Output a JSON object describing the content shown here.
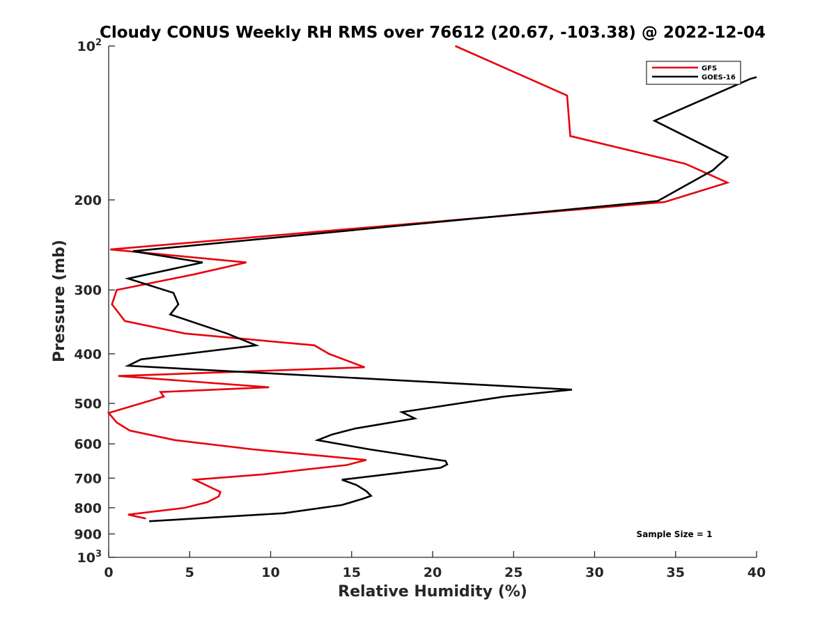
{
  "chart_data": {
    "type": "line",
    "title": "Cloudy CONUS Weekly RH RMS over 76612 (20.67, -103.38) @ 2022-12-04",
    "xlabel": "Relative Humidity (%)",
    "ylabel": "Pressure (mb)",
    "xlim": [
      0,
      40
    ],
    "ylim": [
      100,
      1000
    ],
    "yscale": "log",
    "y_reversed": true,
    "x_ticks": [
      0,
      5,
      10,
      15,
      20,
      25,
      30,
      35,
      40
    ],
    "x_tick_labels": [
      "0",
      "5",
      "10",
      "15",
      "20",
      "25",
      "30",
      "35",
      "40"
    ],
    "y_ticks": [
      {
        "value": 100,
        "label": "10",
        "sup": "2"
      },
      {
        "value": 200,
        "label": "200",
        "sup": ""
      },
      {
        "value": 300,
        "label": "300",
        "sup": ""
      },
      {
        "value": 400,
        "label": "400",
        "sup": ""
      },
      {
        "value": 500,
        "label": "500",
        "sup": ""
      },
      {
        "value": 600,
        "label": "600",
        "sup": ""
      },
      {
        "value": 700,
        "label": "700",
        "sup": ""
      },
      {
        "value": 800,
        "label": "800",
        "sup": ""
      },
      {
        "value": 900,
        "label": "900",
        "sup": ""
      },
      {
        "value": 1000,
        "label": "10",
        "sup": "3"
      }
    ],
    "legend_position": "top-right",
    "annotation": "Sample Size = 1",
    "series": [
      {
        "name": "GFS",
        "color": "#e8000b",
        "points": [
          [
            21.4,
            100
          ],
          [
            28.3,
            125
          ],
          [
            28.5,
            150
          ],
          [
            35.6,
            170
          ],
          [
            38.2,
            185
          ],
          [
            34.3,
            202
          ],
          [
            0.1,
            250
          ],
          [
            8.5,
            265
          ],
          [
            5.2,
            280
          ],
          [
            0.5,
            300
          ],
          [
            0.2,
            320
          ],
          [
            1.0,
            345
          ],
          [
            4.7,
            365
          ],
          [
            12.7,
            385
          ],
          [
            13.6,
            400
          ],
          [
            15.8,
            425
          ],
          [
            0.6,
            442
          ],
          [
            9.9,
            465
          ],
          [
            3.2,
            475
          ],
          [
            3.4,
            485
          ],
          [
            0.0,
            522
          ],
          [
            0.5,
            545
          ],
          [
            1.3,
            565
          ],
          [
            4.1,
            590
          ],
          [
            8.9,
            615
          ],
          [
            15.9,
            645
          ],
          [
            14.7,
            660
          ],
          [
            12.4,
            672
          ],
          [
            9.6,
            688
          ],
          [
            5.3,
            705
          ],
          [
            6.9,
            745
          ],
          [
            6.8,
            760
          ],
          [
            6.1,
            780
          ],
          [
            4.7,
            800
          ],
          [
            1.2,
            825
          ],
          [
            2.3,
            840
          ]
        ]
      },
      {
        "name": "GOES-16",
        "color": "#000000",
        "points": [
          [
            40.0,
            115
          ],
          [
            39.6,
            116
          ],
          [
            33.7,
            140
          ],
          [
            38.2,
            165
          ],
          [
            37.3,
            175
          ],
          [
            33.9,
            201
          ],
          [
            1.5,
            252
          ],
          [
            5.8,
            265
          ],
          [
            1.2,
            285
          ],
          [
            4.0,
            304
          ],
          [
            4.3,
            320
          ],
          [
            3.8,
            335
          ],
          [
            7.3,
            365
          ],
          [
            9.1,
            385
          ],
          [
            2.0,
            410
          ],
          [
            1.2,
            422
          ],
          [
            28.6,
            470
          ],
          [
            24.4,
            485
          ],
          [
            18.1,
            520
          ],
          [
            18.9,
            535
          ],
          [
            15.2,
            560
          ],
          [
            13.8,
            575
          ],
          [
            12.9,
            590
          ],
          [
            16.1,
            615
          ],
          [
            20.8,
            648
          ],
          [
            20.9,
            658
          ],
          [
            20.5,
            668
          ],
          [
            17.7,
            685
          ],
          [
            14.4,
            705
          ],
          [
            15.3,
            722
          ],
          [
            15.9,
            742
          ],
          [
            16.2,
            758
          ],
          [
            15.7,
            768
          ],
          [
            14.4,
            790
          ],
          [
            10.8,
            820
          ],
          [
            2.5,
            850
          ]
        ]
      }
    ]
  }
}
